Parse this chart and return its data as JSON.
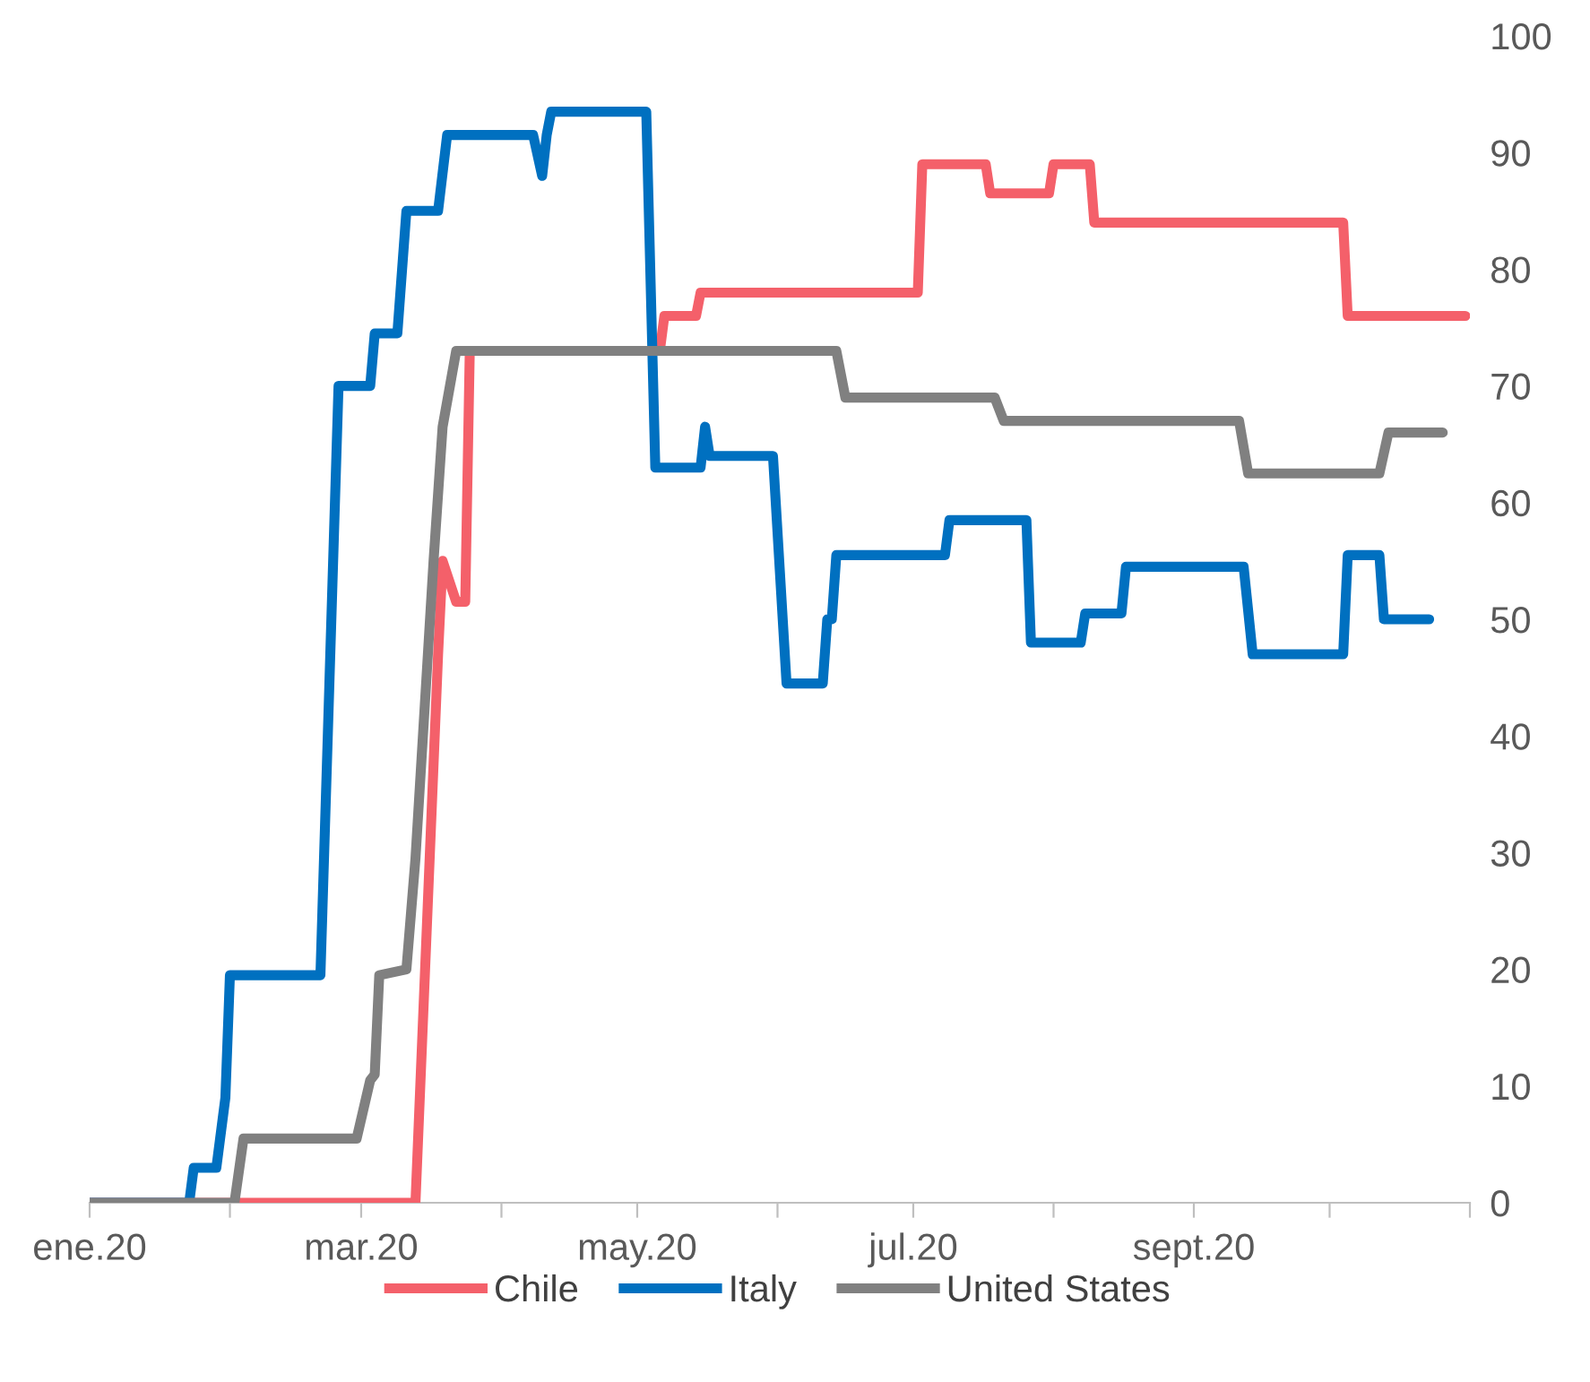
{
  "chart_data": {
    "type": "line",
    "legend": "bottom",
    "grid": false,
    "line_style": "solid",
    "marker": "none",
    "xlim": [
      "2020-01-01",
      "2020-11-01"
    ],
    "xticks": [
      {
        "value": "2020-01-01",
        "label": "ene.20"
      },
      {
        "value": "2020-02-01",
        "label": null
      },
      {
        "value": "2020-03-01",
        "label": "mar.20"
      },
      {
        "value": "2020-04-01",
        "label": null
      },
      {
        "value": "2020-05-01",
        "label": "may.20"
      },
      {
        "value": "2020-06-01",
        "label": null
      },
      {
        "value": "2020-07-01",
        "label": "jul.20"
      },
      {
        "value": "2020-08-01",
        "label": null
      },
      {
        "value": "2020-09-01",
        "label": "sept.20"
      },
      {
        "value": "2020-10-01",
        "label": null
      },
      {
        "value": "2020-11-01",
        "label": null
      }
    ],
    "ylim": [
      0,
      100
    ],
    "yticks": [
      0,
      10,
      20,
      30,
      40,
      50,
      60,
      70,
      80,
      90,
      100
    ],
    "series": [
      {
        "name": "Chile",
        "color": "#f4606a",
        "x": [
          "2020-01-01",
          "2020-03-13",
          "2020-03-18",
          "2020-03-19",
          "2020-03-22",
          "2020-03-24",
          "2020-03-25",
          "2020-05-06",
          "2020-05-07",
          "2020-05-14",
          "2020-05-15",
          "2020-07-02",
          "2020-07-03",
          "2020-07-17",
          "2020-07-18",
          "2020-07-31",
          "2020-08-01",
          "2020-08-09",
          "2020-08-10",
          "2020-10-04",
          "2020-10-05",
          "2020-10-31"
        ],
        "values": [
          0,
          0,
          47,
          55,
          51.5,
          51.5,
          73,
          73,
          76,
          76,
          78,
          78,
          89,
          89,
          86.5,
          86.5,
          89,
          89,
          84,
          84,
          76,
          76
        ]
      },
      {
        "name": "Italy",
        "color": "#0070c0",
        "x": [
          "2020-01-01",
          "2020-01-23",
          "2020-01-24",
          "2020-01-29",
          "2020-01-31",
          "2020-02-01",
          "2020-02-21",
          "2020-02-25",
          "2020-03-03",
          "2020-03-04",
          "2020-03-09",
          "2020-03-11",
          "2020-03-18",
          "2020-03-20",
          "2020-04-08",
          "2020-04-10",
          "2020-04-11",
          "2020-04-12",
          "2020-05-03",
          "2020-05-05",
          "2020-05-15",
          "2020-05-16",
          "2020-05-17",
          "2020-05-31",
          "2020-06-03",
          "2020-06-11",
          "2020-06-12",
          "2020-06-13",
          "2020-06-14",
          "2020-07-08",
          "2020-07-09",
          "2020-07-26",
          "2020-07-27",
          "2020-08-07",
          "2020-08-08",
          "2020-08-16",
          "2020-08-17",
          "2020-09-12",
          "2020-09-14",
          "2020-10-04",
          "2020-10-05",
          "2020-10-12",
          "2020-10-13",
          "2020-10-23"
        ],
        "values": [
          0,
          0,
          3,
          3,
          9,
          19.5,
          19.5,
          70,
          70,
          74.5,
          74.5,
          85,
          85,
          91.5,
          91.5,
          88,
          91.5,
          93.5,
          93.5,
          63,
          63,
          66.5,
          64,
          64,
          44.5,
          44.5,
          50,
          50,
          55.5,
          55.5,
          58.5,
          58.5,
          48,
          48,
          50.5,
          50.5,
          54.5,
          54.5,
          47,
          47,
          55.5,
          55.5,
          50,
          50
        ]
      },
      {
        "name": "United States",
        "color": "#808080",
        "x": [
          "2020-01-01",
          "2020-02-02",
          "2020-02-04",
          "2020-02-29",
          "2020-03-03",
          "2020-03-04",
          "2020-03-05",
          "2020-03-11",
          "2020-03-13",
          "2020-03-17",
          "2020-03-19",
          "2020-03-22",
          "2020-06-14",
          "2020-06-16",
          "2020-07-19",
          "2020-07-21",
          "2020-09-11",
          "2020-09-13",
          "2020-10-12",
          "2020-10-14",
          "2020-10-26"
        ],
        "values": [
          0,
          0,
          5.5,
          5.5,
          10.5,
          11,
          19.5,
          20,
          29.5,
          55,
          66.5,
          73,
          73,
          69,
          69,
          67,
          67,
          62.5,
          62.5,
          66,
          66
        ]
      }
    ]
  }
}
